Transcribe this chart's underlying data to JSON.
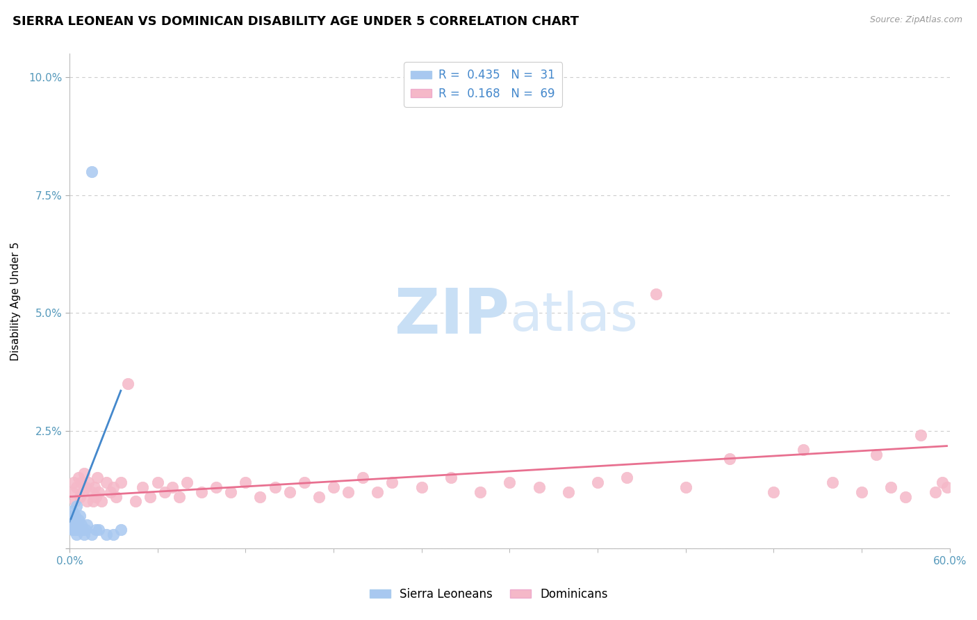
{
  "title": "SIERRA LEONEAN VS DOMINICAN DISABILITY AGE UNDER 5 CORRELATION CHART",
  "source_text": "Source: ZipAtlas.com",
  "ylabel": "Disability Age Under 5",
  "xlim": [
    0.0,
    0.6
  ],
  "ylim": [
    0.0,
    0.105
  ],
  "xticks": [
    0.0,
    0.6
  ],
  "xticklabels": [
    "0.0%",
    "60.0%"
  ],
  "yticks": [
    0.0,
    0.025,
    0.05,
    0.075,
    0.1
  ],
  "yticklabels": [
    "",
    "2.5%",
    "5.0%",
    "7.5%",
    "10.0%"
  ],
  "blue_color": "#a8c8f0",
  "pink_color": "#f5b8c8",
  "blue_line_color": "#4488cc",
  "pink_line_color": "#e87090",
  "background_color": "#ffffff",
  "grid_color": "#cccccc",
  "title_fontsize": 13,
  "axis_label_fontsize": 11,
  "tick_fontsize": 11,
  "tick_color": "#5599bb",
  "watermark": "ZIPatlas",
  "watermark_color": "#ddeeff",
  "sierra_x": [
    0.001,
    0.001,
    0.002,
    0.002,
    0.002,
    0.003,
    0.003,
    0.003,
    0.004,
    0.004,
    0.004,
    0.005,
    0.005,
    0.005,
    0.006,
    0.006,
    0.007,
    0.007,
    0.008,
    0.008,
    0.009,
    0.01,
    0.011,
    0.012,
    0.015,
    0.018,
    0.02,
    0.025,
    0.03,
    0.035,
    0.015
  ],
  "sierra_y": [
    0.005,
    0.006,
    0.004,
    0.007,
    0.008,
    0.004,
    0.005,
    0.006,
    0.004,
    0.005,
    0.007,
    0.003,
    0.005,
    0.009,
    0.004,
    0.006,
    0.004,
    0.007,
    0.004,
    0.005,
    0.004,
    0.003,
    0.004,
    0.005,
    0.003,
    0.004,
    0.004,
    0.003,
    0.003,
    0.004,
    0.08
  ],
  "dominican_x": [
    0.002,
    0.003,
    0.004,
    0.005,
    0.006,
    0.007,
    0.008,
    0.009,
    0.01,
    0.011,
    0.012,
    0.013,
    0.015,
    0.016,
    0.017,
    0.018,
    0.019,
    0.02,
    0.022,
    0.025,
    0.028,
    0.03,
    0.032,
    0.035,
    0.04,
    0.045,
    0.05,
    0.055,
    0.06,
    0.065,
    0.07,
    0.075,
    0.08,
    0.09,
    0.1,
    0.11,
    0.12,
    0.13,
    0.14,
    0.15,
    0.16,
    0.17,
    0.18,
    0.19,
    0.2,
    0.21,
    0.22,
    0.24,
    0.26,
    0.28,
    0.3,
    0.32,
    0.34,
    0.36,
    0.38,
    0.4,
    0.42,
    0.45,
    0.48,
    0.5,
    0.52,
    0.54,
    0.55,
    0.56,
    0.57,
    0.58,
    0.59,
    0.595,
    0.598
  ],
  "dominican_y": [
    0.012,
    0.014,
    0.01,
    0.013,
    0.015,
    0.011,
    0.014,
    0.012,
    0.016,
    0.013,
    0.01,
    0.014,
    0.012,
    0.01,
    0.013,
    0.011,
    0.015,
    0.012,
    0.01,
    0.014,
    0.012,
    0.013,
    0.011,
    0.014,
    0.035,
    0.01,
    0.013,
    0.011,
    0.014,
    0.012,
    0.013,
    0.011,
    0.014,
    0.012,
    0.013,
    0.012,
    0.014,
    0.011,
    0.013,
    0.012,
    0.014,
    0.011,
    0.013,
    0.012,
    0.015,
    0.012,
    0.014,
    0.013,
    0.015,
    0.012,
    0.014,
    0.013,
    0.012,
    0.014,
    0.015,
    0.054,
    0.013,
    0.019,
    0.012,
    0.021,
    0.014,
    0.012,
    0.02,
    0.013,
    0.011,
    0.024,
    0.012,
    0.014,
    0.013
  ],
  "sl_trend_x": [
    0.0,
    0.035
  ],
  "sl_trend_y_intercept": 0.0055,
  "sl_trend_slope": 0.8,
  "dom_trend_x": [
    0.0,
    0.598
  ],
  "dom_trend_y_intercept": 0.011,
  "dom_trend_slope": 0.018
}
